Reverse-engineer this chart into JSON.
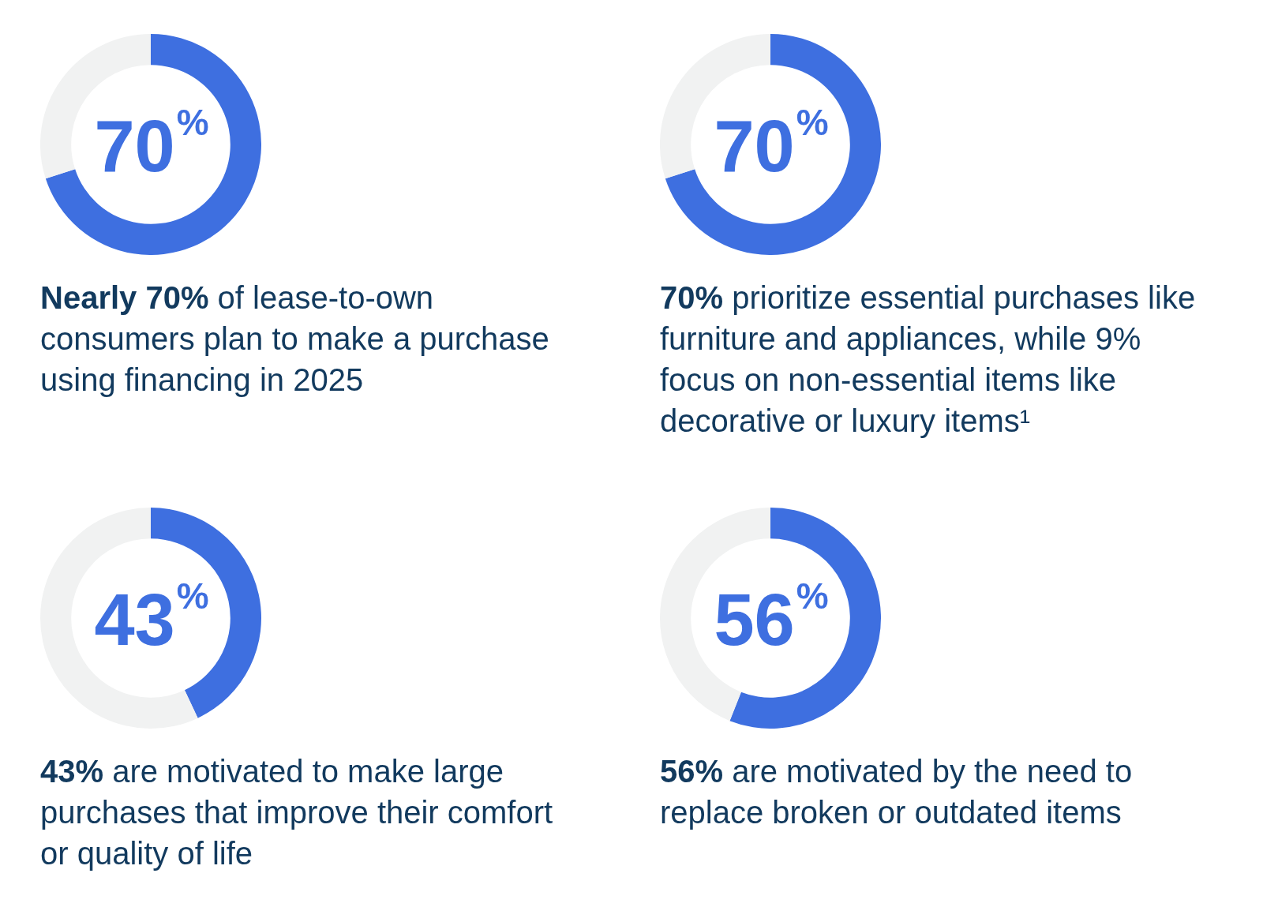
{
  "chart_data": [
    {
      "type": "donut",
      "categories": [
        null,
        null
      ],
      "values": [
        70,
        30
      ],
      "colors": [
        "#3e6fe0",
        "#f1f2f2"
      ],
      "value_labels": [
        "70%",
        null
      ],
      "annotations": [
        "Nearly 70%",
        "of lease-to-own consumers plan to make a purchase using financing in 2025"
      ]
    },
    {
      "type": "donut",
      "categories": [
        null,
        null
      ],
      "values": [
        70,
        30
      ],
      "colors": [
        "#3e6fe0",
        "#f1f2f2"
      ],
      "value_labels": [
        "70%",
        null
      ],
      "annotations": [
        "70%",
        "prioritize essential purchases like furniture and appliances, while 9% focus on non-essential items like decorative or luxury items¹"
      ]
    },
    {
      "type": "donut",
      "categories": [
        null,
        null
      ],
      "values": [
        43,
        57
      ],
      "colors": [
        "#3e6fe0",
        "#f1f2f2"
      ],
      "value_labels": [
        "43%",
        null
      ],
      "annotations": [
        "43%",
        "are motivated to make large purchases that improve their comfort or quality of life"
      ]
    },
    {
      "type": "donut",
      "categories": [
        null,
        null
      ],
      "values": [
        56,
        44
      ],
      "colors": [
        "#3e6fe0",
        "#f1f2f2"
      ],
      "value_labels": [
        "56%",
        null
      ],
      "annotations": [
        "56%",
        "are motivated by the need to replace broken or outdated items"
      ]
    }
  ]
}
